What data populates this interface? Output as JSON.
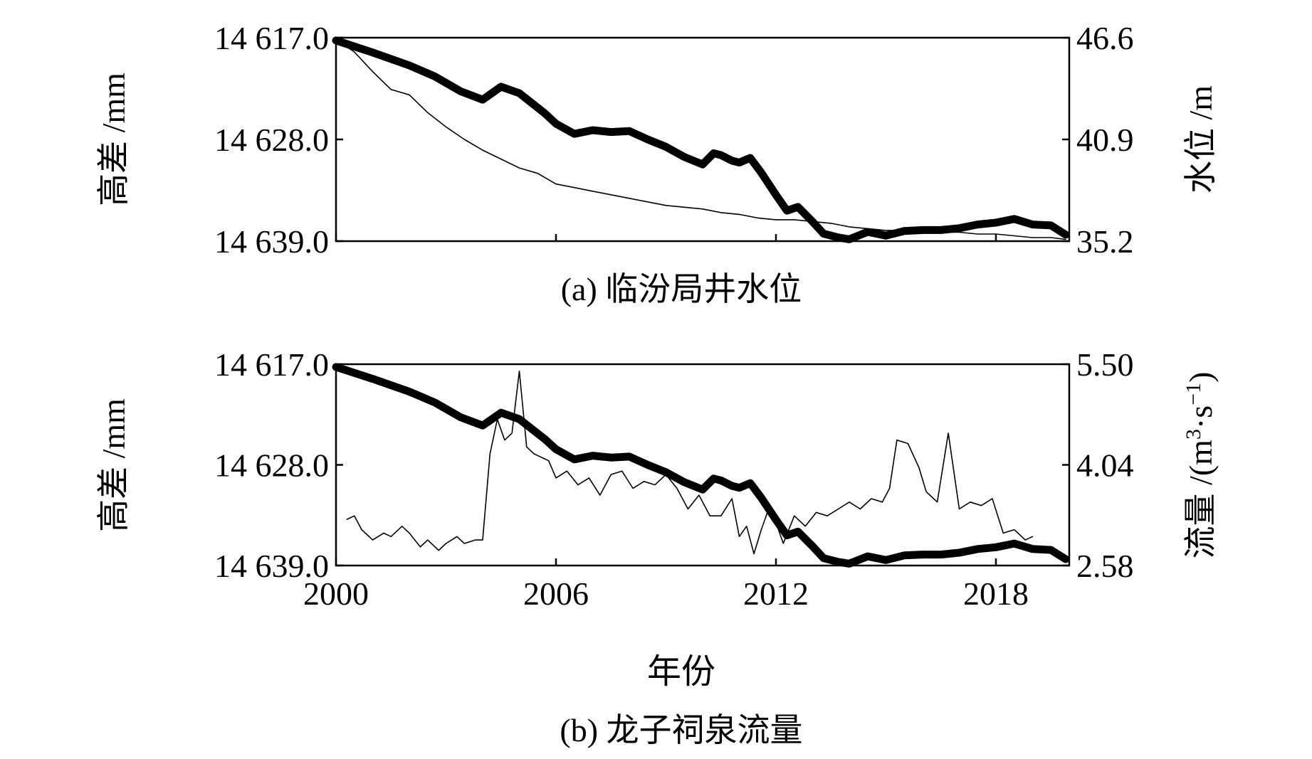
{
  "figure": {
    "x_axis_label": "年份",
    "x_ticks": [
      "2000",
      "2006",
      "2012",
      "2018"
    ]
  },
  "chart_data": [
    {
      "id": "a",
      "type": "line",
      "caption": "(a) 临汾局井水位",
      "xlabel": "年份",
      "ylabel_left": "高差 /mm",
      "ylabel_right": "水位 /m",
      "xlim": [
        2000,
        2020
      ],
      "ylim_left": [
        14639.0,
        14617.0
      ],
      "ylim_right": [
        35.2,
        46.6
      ],
      "x_ticks": [
        "2000",
        "2006",
        "2012",
        "2018"
      ],
      "y_ticks_left": [
        "14 617.0",
        "14 628.0",
        "14 639.0"
      ],
      "y_ticks_right": [
        "46.6",
        "40.9",
        "35.2"
      ],
      "left_axis_inverted": true,
      "series": [
        {
          "axis": "left",
          "style": "thick",
          "x": [
            2000.0,
            2001.0,
            2002.0,
            2002.7,
            2003.4,
            2004.0,
            2004.5,
            2005.0,
            2005.7,
            2006.0,
            2006.5,
            2007.0,
            2007.5,
            2008.0,
            2008.5,
            2009.0,
            2009.5,
            2010.0,
            2010.3,
            2010.5,
            2010.8,
            2011.0,
            2011.3,
            2011.6,
            2012.0,
            2012.3,
            2012.6,
            2013.0,
            2013.3,
            2013.7,
            2014.0,
            2014.5,
            2015.0,
            2015.5,
            2016.0,
            2016.5,
            2017.0,
            2017.5,
            2018.0,
            2018.5,
            2019.0,
            2019.5,
            2019.9
          ],
          "y": [
            14617.3,
            14618.6,
            14620.0,
            14621.2,
            14622.8,
            14623.7,
            14622.3,
            14623.0,
            14625.2,
            14626.3,
            14627.4,
            14627.0,
            14627.2,
            14627.1,
            14628.0,
            14628.8,
            14629.9,
            14630.7,
            14629.5,
            14629.7,
            14630.3,
            14630.5,
            14630.0,
            14631.6,
            14634.0,
            14635.7,
            14635.3,
            14636.9,
            14638.2,
            14638.6,
            14638.8,
            14638.0,
            14638.4,
            14637.9,
            14637.8,
            14637.8,
            14637.6,
            14637.2,
            14637.0,
            14636.6,
            14637.2,
            14637.3,
            14638.3
          ]
        },
        {
          "axis": "right",
          "style": "thin",
          "x": [
            2000.0,
            2000.5,
            2001.0,
            2001.5,
            2002.0,
            2002.5,
            2003.0,
            2003.5,
            2004.0,
            2004.5,
            2005.0,
            2005.5,
            2006.0,
            2006.5,
            2007.0,
            2007.5,
            2008.0,
            2008.5,
            2009.0,
            2009.5,
            2010.0,
            2010.5,
            2011.0,
            2011.5,
            2012.0,
            2012.5,
            2013.0,
            2013.5,
            2014.0,
            2014.5,
            2015.0,
            2015.5,
            2016.0,
            2016.5,
            2017.0,
            2017.5,
            2018.0,
            2018.5,
            2019.0,
            2019.5,
            2019.9
          ],
          "y": [
            46.5,
            45.8,
            44.7,
            43.7,
            43.4,
            42.4,
            41.6,
            40.9,
            40.3,
            39.8,
            39.3,
            39.0,
            38.4,
            38.2,
            38.0,
            37.8,
            37.6,
            37.4,
            37.2,
            37.1,
            37.0,
            36.8,
            36.7,
            36.5,
            36.4,
            36.4,
            36.3,
            36.2,
            36.0,
            35.9,
            35.8,
            35.8,
            35.8,
            35.7,
            35.7,
            35.6,
            35.6,
            35.5,
            35.4,
            35.4,
            35.3
          ]
        }
      ]
    },
    {
      "id": "b",
      "type": "line",
      "caption": "(b) 龙子祠泉流量",
      "xlabel": "年份",
      "ylabel_left": "高差 /mm",
      "ylabel_right_main": "流量 /(m",
      "ylabel_right_sup1": "3",
      "ylabel_right_mid": "·s",
      "ylabel_right_sup2": "−1",
      "ylabel_right_end": ")",
      "xlim": [
        2000,
        2020
      ],
      "ylim_left": [
        14639.0,
        14617.0
      ],
      "ylim_right": [
        2.58,
        5.5
      ],
      "x_ticks": [
        "2000",
        "2006",
        "2012",
        "2018"
      ],
      "y_ticks_left": [
        "14 617.0",
        "14 628.0",
        "14 639.0"
      ],
      "y_ticks_right": [
        "5.50",
        "4.04",
        "2.58"
      ],
      "left_axis_inverted": true,
      "series": [
        {
          "axis": "left",
          "style": "thick",
          "x": [
            2000.0,
            2001.0,
            2002.0,
            2002.7,
            2003.4,
            2004.0,
            2004.5,
            2005.0,
            2005.7,
            2006.0,
            2006.5,
            2007.0,
            2007.5,
            2008.0,
            2008.5,
            2009.0,
            2009.5,
            2010.0,
            2010.3,
            2010.5,
            2010.8,
            2011.0,
            2011.3,
            2011.6,
            2012.0,
            2012.3,
            2012.6,
            2013.0,
            2013.3,
            2013.7,
            2014.0,
            2014.5,
            2015.0,
            2015.5,
            2016.0,
            2016.5,
            2017.0,
            2017.5,
            2018.0,
            2018.5,
            2019.0,
            2019.5,
            2019.9
          ],
          "y": [
            14617.3,
            14618.6,
            14620.0,
            14621.2,
            14622.8,
            14623.7,
            14622.3,
            14623.0,
            14625.2,
            14626.3,
            14627.4,
            14627.0,
            14627.2,
            14627.1,
            14628.0,
            14628.8,
            14629.9,
            14630.7,
            14629.5,
            14629.7,
            14630.3,
            14630.5,
            14630.0,
            14631.6,
            14634.0,
            14635.7,
            14635.3,
            14636.9,
            14638.2,
            14638.6,
            14638.8,
            14638.0,
            14638.4,
            14637.9,
            14637.8,
            14637.8,
            14637.6,
            14637.2,
            14637.0,
            14636.6,
            14637.2,
            14637.3,
            14638.3
          ]
        },
        {
          "axis": "right",
          "style": "thin",
          "x": [
            2000.3,
            2000.5,
            2000.7,
            2001.0,
            2001.3,
            2001.5,
            2001.8,
            2002.0,
            2002.3,
            2002.5,
            2002.8,
            2003.0,
            2003.3,
            2003.5,
            2003.8,
            2004.0,
            2004.2,
            2004.4,
            2004.6,
            2004.8,
            2005.0,
            2005.2,
            2005.4,
            2005.6,
            2005.8,
            2006.0,
            2006.3,
            2006.6,
            2006.9,
            2007.2,
            2007.5,
            2007.8,
            2008.1,
            2008.4,
            2008.7,
            2009.0,
            2009.3,
            2009.6,
            2009.9,
            2010.2,
            2010.5,
            2010.8,
            2011.0,
            2011.2,
            2011.4,
            2011.6,
            2011.8,
            2012.0,
            2012.2,
            2012.5,
            2012.8,
            2013.1,
            2013.4,
            2013.7,
            2014.0,
            2014.3,
            2014.6,
            2014.9,
            2015.1,
            2015.3,
            2015.6,
            2015.9,
            2016.1,
            2016.4,
            2016.7,
            2017.0,
            2017.3,
            2017.6,
            2017.9,
            2018.2,
            2018.5,
            2018.8,
            2019.0
          ],
          "y": [
            3.25,
            3.3,
            3.1,
            2.95,
            3.05,
            3.0,
            3.15,
            3.05,
            2.85,
            2.95,
            2.8,
            2.9,
            3.0,
            2.9,
            2.95,
            2.95,
            4.2,
            4.7,
            4.4,
            4.5,
            5.4,
            4.3,
            4.2,
            4.15,
            4.1,
            3.85,
            3.95,
            3.75,
            3.85,
            3.6,
            3.9,
            3.95,
            3.7,
            3.8,
            3.75,
            3.9,
            3.7,
            3.4,
            3.6,
            3.3,
            3.3,
            3.55,
            3.0,
            3.15,
            2.75,
            3.1,
            3.4,
            3.2,
            2.9,
            3.3,
            3.15,
            3.35,
            3.3,
            3.4,
            3.5,
            3.4,
            3.55,
            3.5,
            3.7,
            4.4,
            4.35,
            4.0,
            3.65,
            3.5,
            4.5,
            3.4,
            3.5,
            3.45,
            3.55,
            3.05,
            3.1,
            2.95,
            3.0
          ]
        }
      ]
    }
  ]
}
